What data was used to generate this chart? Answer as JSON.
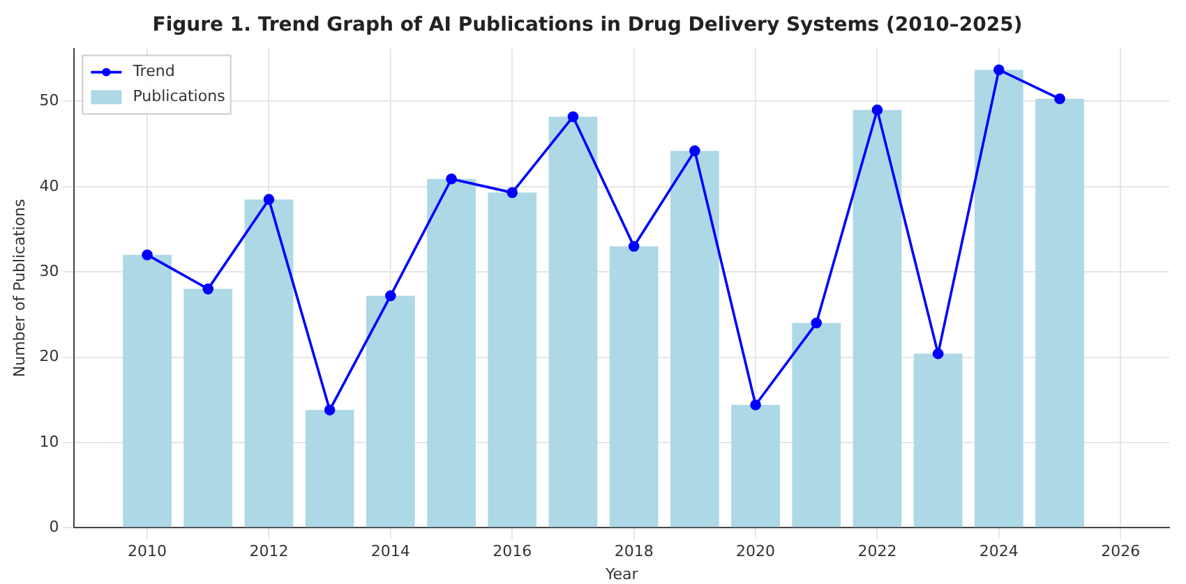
{
  "chart_data": {
    "type": "bar",
    "title": "Figure 1. Trend Graph of AI Publications in Drug Delivery Systems (2010–2025)",
    "xlabel": "Year",
    "ylabel": "Number of Publications",
    "x": [
      2010,
      2011,
      2012,
      2013,
      2014,
      2015,
      2016,
      2017,
      2018,
      2019,
      2020,
      2021,
      2022,
      2023,
      2024,
      2025
    ],
    "series": [
      {
        "name": "Trend",
        "type": "line",
        "color": "#0000ff",
        "marker": "circle",
        "line_style": "solid",
        "values": [
          32,
          28,
          38.5,
          13.8,
          27.2,
          40.9,
          39.3,
          48.2,
          33,
          44.2,
          14.4,
          24,
          49,
          20.4,
          53.7,
          50.3
        ]
      },
      {
        "name": "Publications",
        "color": "#add8e6",
        "values": [
          32,
          28,
          38.5,
          13.8,
          27.2,
          40.9,
          39.3,
          48.2,
          33,
          44.2,
          14.4,
          24,
          49,
          20.4,
          53.7,
          50.3
        ]
      }
    ],
    "xlim": [
      2008.8,
      2026.8
    ],
    "xticks": [
      2010,
      2012,
      2014,
      2016,
      2018,
      2020,
      2022,
      2024,
      2026
    ],
    "ylim": [
      0,
      56.2
    ],
    "yticks": [
      0,
      10,
      20,
      30,
      40,
      50
    ],
    "grid": true,
    "legend": "top left"
  }
}
